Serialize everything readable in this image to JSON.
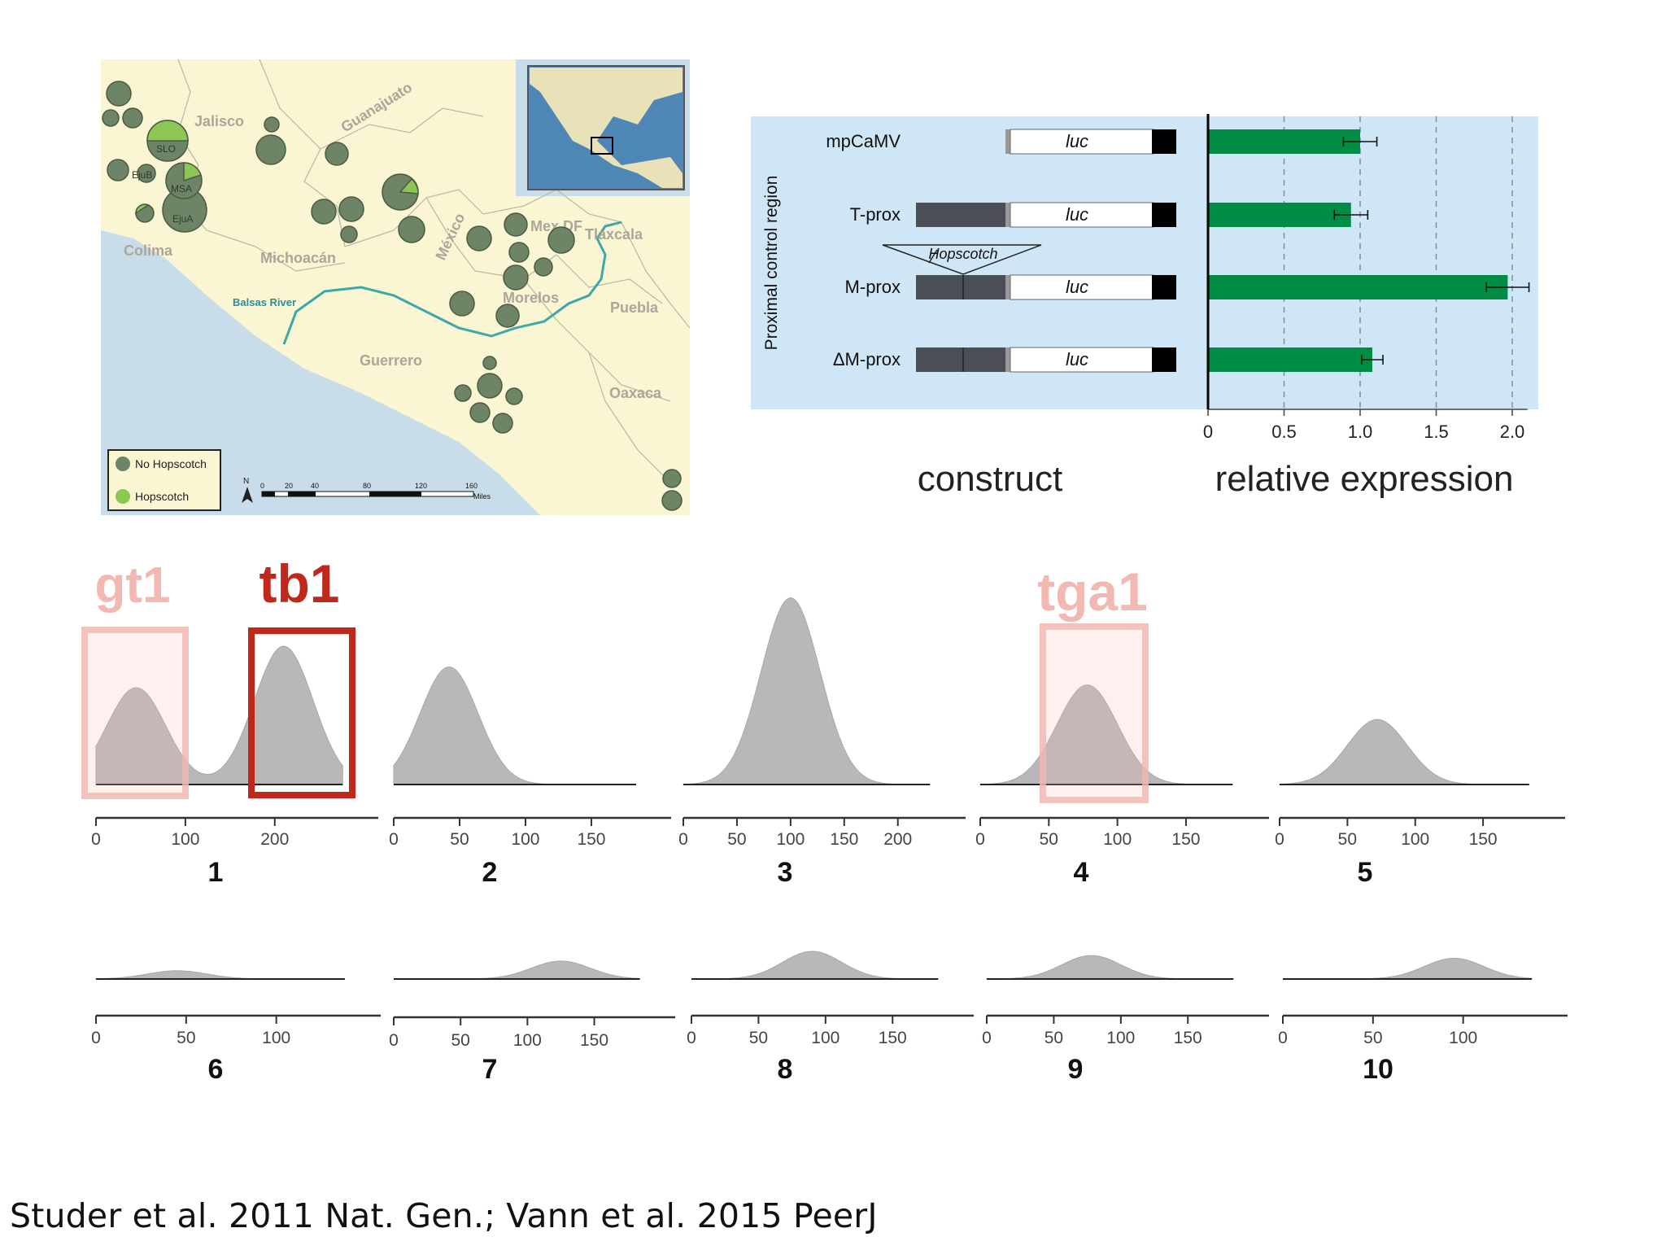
{
  "map": {
    "states": [
      "Jalisco",
      "Guanajuato",
      "Colima",
      "Michoacán",
      "México",
      "Mex DF",
      "Tlaxcala",
      "Morelos",
      "Puebla",
      "Guerrero",
      "Oaxaca"
    ],
    "river": "Balsas River",
    "site_labels": [
      "SLO",
      "EjuB",
      "MSA",
      "EjuA"
    ],
    "legend": {
      "no_hopscotch": "No Hopscotch",
      "hopscotch": "Hopscotch"
    },
    "north_label": "N",
    "scale_ticks": [
      "0",
      "20",
      "40",
      "80",
      "120",
      "160"
    ],
    "scale_unit": "Miles",
    "colors": {
      "no_hopscotch": "#6e8466",
      "hopscotch": "#8cc653",
      "land": "#faf5d2",
      "sea": "#c9dce9"
    }
  },
  "constructs": {
    "y_axis_label": "Proximal control region",
    "items": [
      {
        "name": "mpCaMV",
        "reporter": "luc"
      },
      {
        "name": "T-prox",
        "reporter": "luc"
      },
      {
        "name": "M-prox",
        "reporter": "luc",
        "insertion": "Hopscotch"
      },
      {
        "name": "ΔM-prox",
        "reporter": "luc"
      }
    ],
    "x_caption": "construct"
  },
  "chart_data": [
    {
      "type": "bar",
      "orientation": "horizontal",
      "categories": [
        "mpCaMV",
        "T-prox",
        "M-prox",
        "ΔM-prox"
      ],
      "values": [
        1.0,
        0.94,
        1.97,
        1.08
      ],
      "errors": [
        0.11,
        0.11,
        0.14,
        0.07
      ],
      "xlim": [
        0,
        2.1
      ],
      "xticks": [
        "0",
        "0.5",
        "1.0",
        "1.5",
        "2.0"
      ],
      "grid": "dashed vertical",
      "xlabel": "relative expression",
      "color": "#008c45"
    },
    {
      "type": "area",
      "panel": "1",
      "xticks": [
        "0",
        "100",
        "200"
      ],
      "peaks": [
        {
          "x": 45,
          "relative_height": 0.7
        },
        {
          "x": 210,
          "relative_height": 1.0
        }
      ]
    },
    {
      "type": "area",
      "panel": "2",
      "xticks": [
        "0",
        "50",
        "100",
        "150"
      ],
      "peaks": [
        {
          "x": 42,
          "relative_height": 0.85
        }
      ]
    },
    {
      "type": "area",
      "panel": "3",
      "xticks": [
        "0",
        "50",
        "100",
        "150",
        "200"
      ],
      "peaks": [
        {
          "x": 100,
          "relative_height": 1.35
        }
      ]
    },
    {
      "type": "area",
      "panel": "4",
      "xticks": [
        "0",
        "50",
        "100",
        "150"
      ],
      "peaks": [
        {
          "x": 78,
          "relative_height": 0.72
        }
      ]
    },
    {
      "type": "area",
      "panel": "5",
      "xticks": [
        "0",
        "50",
        "100",
        "150"
      ],
      "peaks": [
        {
          "x": 72,
          "relative_height": 0.47
        }
      ]
    },
    {
      "type": "area",
      "panel": "6",
      "xticks": [
        "0",
        "50",
        "100"
      ],
      "peaks": [
        {
          "x": 45,
          "relative_height": 0.06
        }
      ]
    },
    {
      "type": "area",
      "panel": "7",
      "xticks": [
        "0",
        "50",
        "100",
        "150"
      ],
      "peaks": [
        {
          "x": 125,
          "relative_height": 0.13
        }
      ]
    },
    {
      "type": "area",
      "panel": "8",
      "xticks": [
        "0",
        "50",
        "100",
        "150"
      ],
      "peaks": [
        {
          "x": 90,
          "relative_height": 0.2
        }
      ]
    },
    {
      "type": "area",
      "panel": "9",
      "xticks": [
        "0",
        "50",
        "100",
        "150"
      ],
      "peaks": [
        {
          "x": 78,
          "relative_height": 0.17
        }
      ]
    },
    {
      "type": "area",
      "panel": "10",
      "xticks": [
        "0",
        "50",
        "100"
      ],
      "peaks": [
        {
          "x": 95,
          "relative_height": 0.15
        }
      ]
    }
  ],
  "qtl": {
    "highlights": [
      {
        "label": "gt1",
        "color": "#f2b8b2"
      },
      {
        "label": "tb1",
        "color": "#c0281c"
      },
      {
        "label": "tga1",
        "color": "#f2b8b2"
      }
    ]
  },
  "citation": "Studer et al. 2011 Nat. Gen.; Vann et al. 2015 PeerJ"
}
